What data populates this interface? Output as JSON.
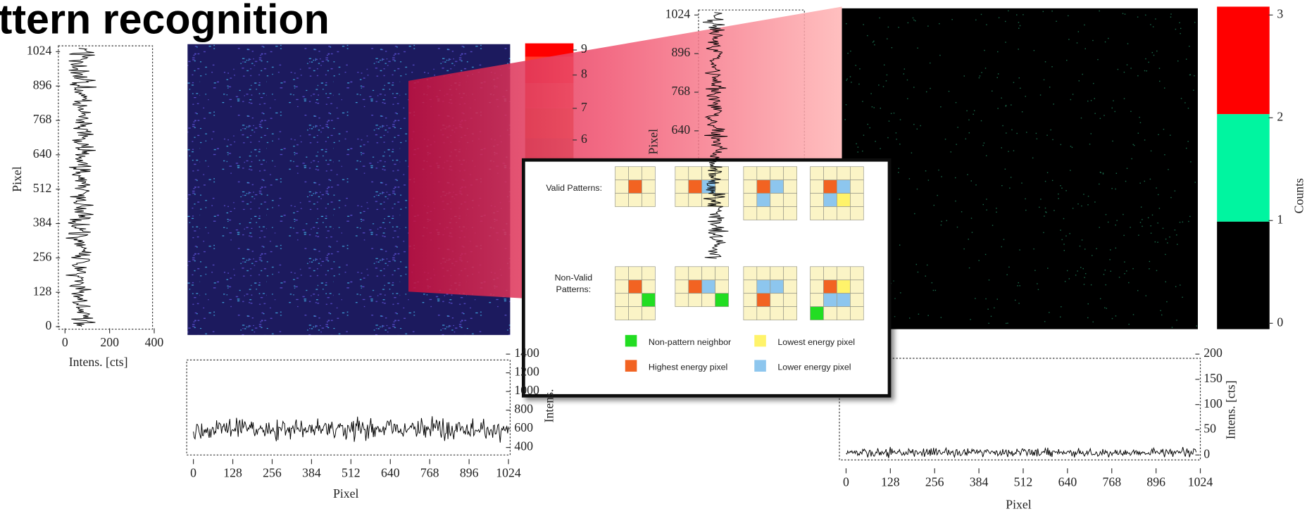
{
  "title": "ttern recognition",
  "left_profile": {
    "yticks": [
      1024,
      896,
      768,
      640,
      512,
      384,
      256,
      128,
      0
    ],
    "ylabel": "Pixel",
    "xticks": [
      0,
      200,
      400
    ],
    "xlabel": "Intens. [cts]"
  },
  "left_colorbar": {
    "ticks": [
      9,
      8,
      7,
      6
    ]
  },
  "left_bottom_profile": {
    "yticks": [
      1400,
      1200,
      1000,
      800,
      600,
      400
    ],
    "ylabel": "Intens.",
    "xticks": [
      0,
      128,
      256,
      384,
      512,
      640,
      768,
      896,
      1024
    ],
    "xlabel": "Pixel"
  },
  "right_profile": {
    "yticks": [
      1024,
      896,
      768,
      640
    ],
    "ylabel": "Pixel"
  },
  "right_colorbar": {
    "ticks": [
      3,
      2,
      1,
      0
    ],
    "label": "Counts"
  },
  "right_bottom_profile": {
    "yticks": [
      200,
      150,
      100,
      50,
      0
    ],
    "ylabel": "Intens. [cts]",
    "xticks": [
      0,
      128,
      256,
      384,
      512,
      640,
      768,
      896,
      1024
    ],
    "xlabel": "Pixel"
  },
  "inset": {
    "valid_label": "Valid Patterns:",
    "nonvalid_label": [
      "Non-Valid",
      "Patterns:"
    ],
    "legend": [
      "Non-pattern neighbor",
      "Lowest energy pixel",
      "Highest energy pixel",
      "Lower energy pixel"
    ]
  }
}
